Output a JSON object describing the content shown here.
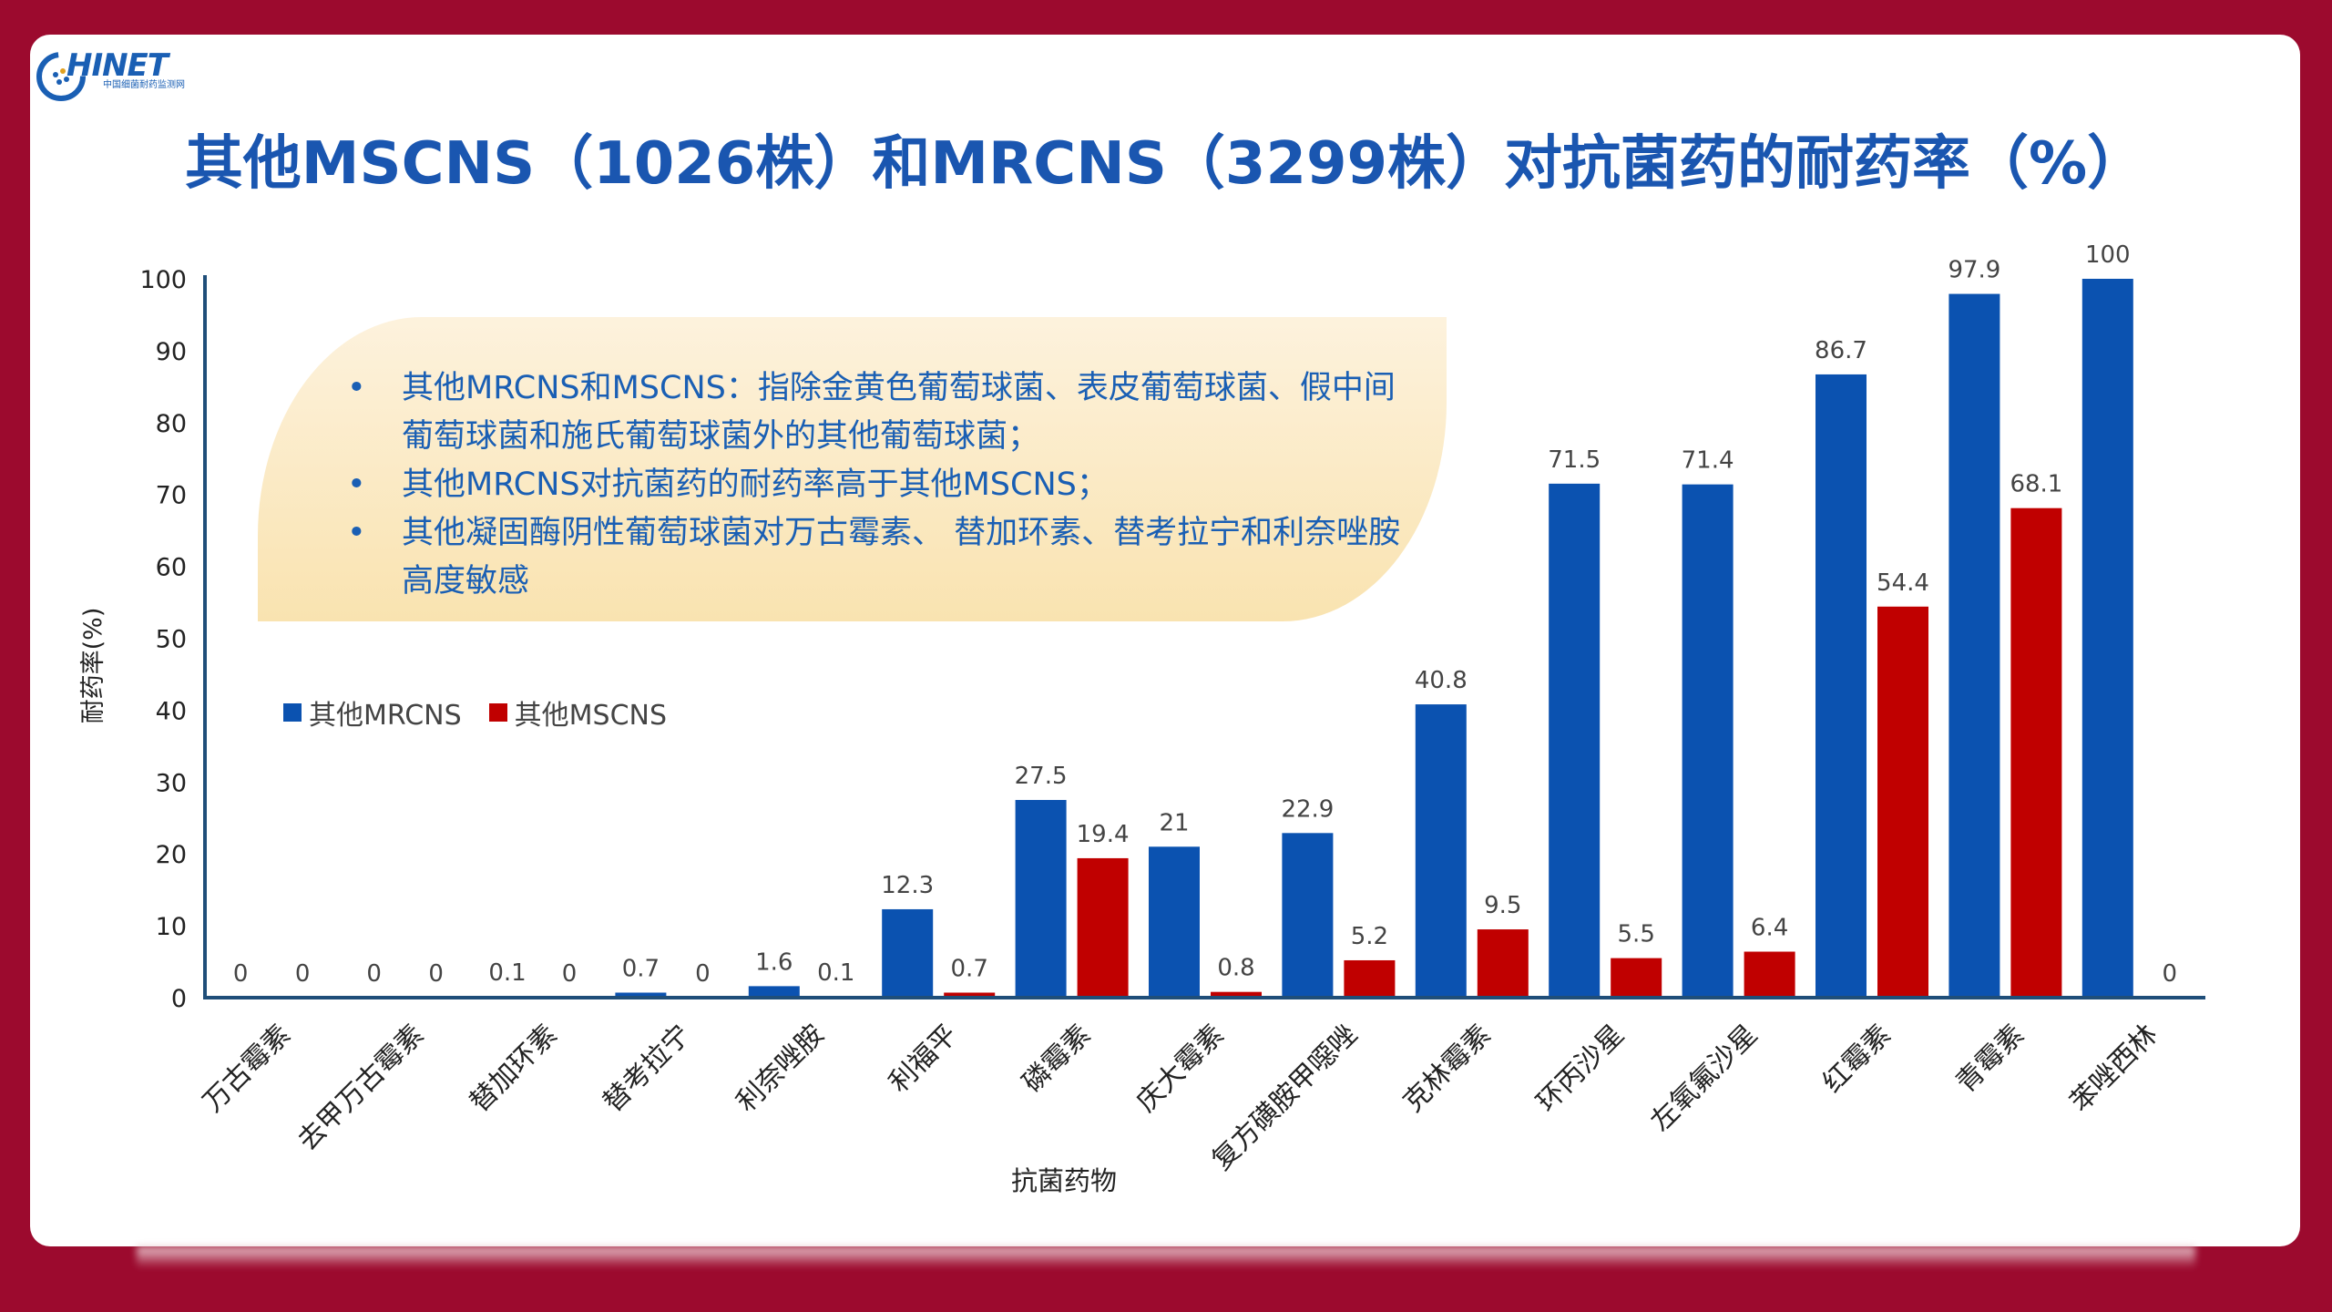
{
  "title": "其他MSCNS（1026株）和MRCNS（3299株）对抗菌药的耐药率（%）",
  "logo": {
    "text": "HINET",
    "sub": "中国细菌耐药监测网"
  },
  "notes": [
    "其他MRCNS和MSCNS：指除金黄色葡萄球菌、表皮葡萄球菌、假中间葡萄球菌和施氏葡萄球菌外的其他葡萄球菌；",
    "其他MRCNS对抗菌药的耐药率高于其他MSCNS；",
    "其他凝固酶阴性葡萄球菌对万古霉素、 替加环素、替考拉宁和利奈唑胺高度敏感"
  ],
  "colors": {
    "mrcns": "#0b52b0",
    "mscns": "#c00000",
    "axis": "#1f4e79"
  },
  "chart_data": {
    "type": "bar",
    "xlabel": "抗菌药物",
    "ylabel": "耐药率(%)",
    "ylim": [
      0,
      100
    ],
    "yticks": [
      0,
      10,
      20,
      30,
      40,
      50,
      60,
      70,
      80,
      90,
      100
    ],
    "legend": "left",
    "categories": [
      "万古霉素",
      "去甲万古霉素",
      "替加环素",
      "替考拉宁",
      "利奈唑胺",
      "利福平",
      "磷霉素",
      "庆大霉素",
      "复方磺胺甲噁唑",
      "克林霉素",
      "环丙沙星",
      "左氧氟沙星",
      "红霉素",
      "青霉素",
      "苯唑西林"
    ],
    "series": [
      {
        "name": "其他MRCNS",
        "values": [
          0,
          0,
          0.1,
          0.7,
          1.6,
          12.3,
          27.5,
          21,
          22.9,
          40.8,
          71.5,
          71.4,
          86.7,
          97.9,
          100
        ]
      },
      {
        "name": "其他MSCNS",
        "values": [
          0,
          0,
          0,
          0,
          0.1,
          0.7,
          19.4,
          0.8,
          5.2,
          9.5,
          5.5,
          6.4,
          54.4,
          68.1,
          0
        ]
      }
    ]
  }
}
